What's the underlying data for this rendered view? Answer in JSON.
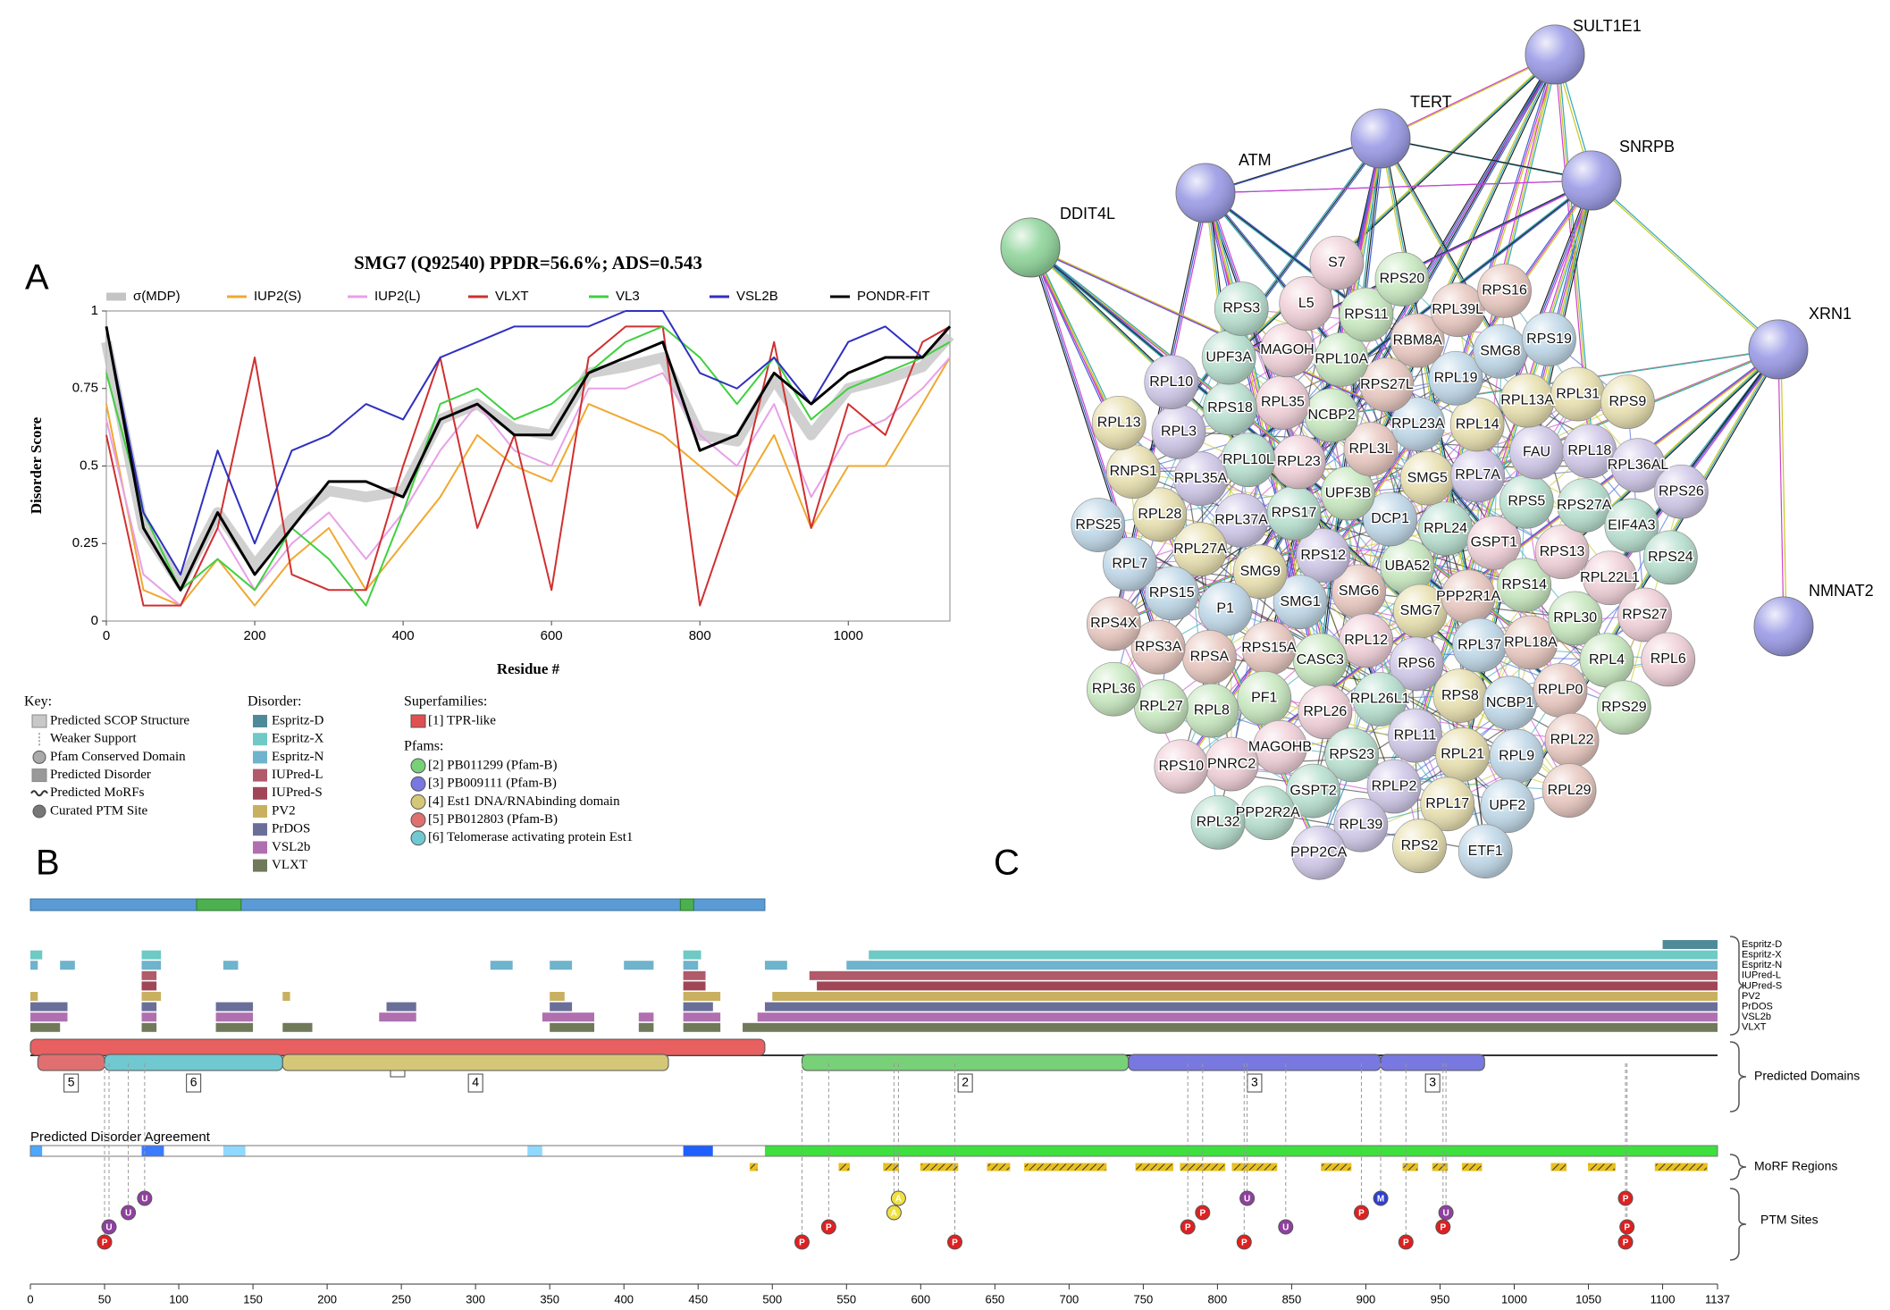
{
  "chart_data": [
    {
      "type": "line",
      "panel": "A",
      "title": "SMG7 (Q92540) PPDR=56.6%; ADS=0.543",
      "x_label": "Residue #",
      "y_label": "Disorder Score",
      "x": [
        0,
        50,
        100,
        150,
        200,
        250,
        300,
        350,
        400,
        450,
        500,
        550,
        600,
        650,
        700,
        750,
        800,
        850,
        900,
        950,
        1000,
        1050,
        1100,
        1137
      ],
      "series": [
        {
          "name": "σ(MDP)",
          "color": "#c4c4c4",
          "values": [
            0.9,
            0.3,
            0.12,
            0.35,
            0.18,
            0.33,
            0.42,
            0.4,
            0.42,
            0.65,
            0.7,
            0.62,
            0.6,
            0.8,
            0.82,
            0.85,
            0.6,
            0.58,
            0.78,
            0.6,
            0.75,
            0.78,
            0.82,
            0.92
          ]
        },
        {
          "name": "IUP2(S)",
          "color": "#f0a830",
          "values": [
            0.7,
            0.1,
            0.05,
            0.2,
            0.05,
            0.2,
            0.3,
            0.1,
            0.25,
            0.4,
            0.6,
            0.5,
            0.45,
            0.7,
            0.65,
            0.6,
            0.5,
            0.4,
            0.6,
            0.3,
            0.5,
            0.5,
            0.7,
            0.85
          ]
        },
        {
          "name": "IUP2(L)",
          "color": "#e8a0e8",
          "values": [
            0.65,
            0.15,
            0.05,
            0.3,
            0.1,
            0.25,
            0.35,
            0.2,
            0.35,
            0.55,
            0.7,
            0.55,
            0.5,
            0.75,
            0.75,
            0.8,
            0.6,
            0.5,
            0.7,
            0.4,
            0.6,
            0.65,
            0.75,
            0.85
          ]
        },
        {
          "name": "VLXT",
          "color": "#d03030",
          "values": [
            0.6,
            0.05,
            0.05,
            0.3,
            0.85,
            0.15,
            0.1,
            0.1,
            0.5,
            0.85,
            0.3,
            0.6,
            0.1,
            0.85,
            0.95,
            0.95,
            0.05,
            0.4,
            0.9,
            0.3,
            0.7,
            0.6,
            0.9,
            0.95
          ]
        },
        {
          "name": "VL3",
          "color": "#40d040",
          "values": [
            0.8,
            0.35,
            0.1,
            0.2,
            0.1,
            0.3,
            0.2,
            0.05,
            0.35,
            0.7,
            0.75,
            0.65,
            0.7,
            0.8,
            0.9,
            0.95,
            0.85,
            0.7,
            0.85,
            0.65,
            0.75,
            0.8,
            0.85,
            0.9
          ]
        },
        {
          "name": "VSL2B",
          "color": "#3030c0",
          "values": [
            0.95,
            0.35,
            0.15,
            0.55,
            0.25,
            0.55,
            0.6,
            0.7,
            0.65,
            0.85,
            0.9,
            0.95,
            0.95,
            0.95,
            1,
            1,
            0.8,
            0.75,
            0.85,
            0.7,
            0.9,
            0.95,
            0.85,
            0.95
          ]
        },
        {
          "name": "PONDR-FIT",
          "color": "#000000",
          "values": [
            0.95,
            0.3,
            0.1,
            0.35,
            0.15,
            0.3,
            0.45,
            0.45,
            0.4,
            0.65,
            0.7,
            0.6,
            0.6,
            0.8,
            0.85,
            0.9,
            0.55,
            0.6,
            0.8,
            0.7,
            0.8,
            0.85,
            0.85,
            0.95
          ]
        }
      ],
      "xlim": [
        0,
        1137
      ],
      "ylim": [
        0,
        1
      ],
      "xticks": [
        0,
        200,
        400,
        600,
        800,
        1000
      ],
      "yticks": [
        0,
        0.25,
        0.5,
        0.75,
        1
      ],
      "reference_line": 0.5
    },
    {
      "type": "track",
      "panel": "B",
      "xlim": [
        0,
        1137
      ],
      "xticks": [
        0,
        50,
        100,
        150,
        200,
        250,
        300,
        350,
        400,
        450,
        500,
        550,
        600,
        650,
        700,
        750,
        800,
        850,
        900,
        950,
        1000,
        1050,
        1100,
        1137
      ],
      "structure": {
        "color": "#5b9bd5",
        "range": [
          0,
          495
        ],
        "support_color": "#4caf50",
        "support": [
          [
            112,
            142
          ],
          [
            438,
            447
          ]
        ]
      },
      "disorder": {
        "title": "Disorder:",
        "tracks": [
          {
            "name": "Espritz-D",
            "color": "#4f8a98",
            "segments": [
              [
                1100,
                1137
              ]
            ]
          },
          {
            "name": "Espritz-X",
            "color": "#6fc9c4",
            "segments": [
              [
                0,
                8
              ],
              [
                75,
                88
              ],
              [
                440,
                452
              ],
              [
                565,
                1137
              ]
            ]
          },
          {
            "name": "Espritz-N",
            "color": "#6fb3cc",
            "segments": [
              [
                0,
                5
              ],
              [
                20,
                30
              ],
              [
                75,
                88
              ],
              [
                130,
                140
              ],
              [
                310,
                325
              ],
              [
                350,
                365
              ],
              [
                400,
                420
              ],
              [
                440,
                450
              ],
              [
                495,
                510
              ],
              [
                550,
                1137
              ]
            ]
          },
          {
            "name": "IUPred-L",
            "color": "#b05a6a",
            "segments": [
              [
                75,
                85
              ],
              [
                440,
                455
              ],
              [
                525,
                1137
              ]
            ]
          },
          {
            "name": "IUPred-S",
            "color": "#a04656",
            "segments": [
              [
                75,
                85
              ],
              [
                440,
                455
              ],
              [
                530,
                1137
              ]
            ]
          },
          {
            "name": "PV2",
            "color": "#c9b060",
            "segments": [
              [
                0,
                5
              ],
              [
                75,
                88
              ],
              [
                170,
                175
              ],
              [
                350,
                360
              ],
              [
                440,
                465
              ],
              [
                500,
                1137
              ]
            ]
          },
          {
            "name": "PrDOS",
            "color": "#6a6f9a",
            "segments": [
              [
                0,
                25
              ],
              [
                75,
                85
              ],
              [
                125,
                150
              ],
              [
                240,
                260
              ],
              [
                350,
                365
              ],
              [
                440,
                460
              ],
              [
                495,
                1137
              ]
            ]
          },
          {
            "name": "VSL2b",
            "color": "#b070b0",
            "segments": [
              [
                0,
                25
              ],
              [
                75,
                85
              ],
              [
                125,
                150
              ],
              [
                235,
                260
              ],
              [
                345,
                380
              ],
              [
                410,
                420
              ],
              [
                440,
                465
              ],
              [
                490,
                1137
              ]
            ]
          },
          {
            "name": "VLXT",
            "color": "#707a5a",
            "segments": [
              [
                0,
                20
              ],
              [
                75,
                85
              ],
              [
                125,
                150
              ],
              [
                170,
                190
              ],
              [
                350,
                380
              ],
              [
                410,
                420
              ],
              [
                440,
                465
              ],
              [
                480,
                1137
              ]
            ]
          }
        ]
      },
      "domains_label": "Predicted Domains",
      "domains": [
        {
          "label": "1",
          "start": 0,
          "end": 495,
          "color": "#e86060",
          "row": 0
        },
        {
          "label": "5",
          "start": 5,
          "end": 50,
          "color": "#e07070",
          "row": 1
        },
        {
          "label": "6",
          "start": 50,
          "end": 170,
          "color": "#70c8d0",
          "row": 1
        },
        {
          "label": "4",
          "start": 170,
          "end": 430,
          "color": "#d4c878",
          "row": 1
        },
        {
          "label": "2",
          "start": 520,
          "end": 740,
          "color": "#78d078",
          "row": 1
        },
        {
          "label": "3",
          "start": 740,
          "end": 910,
          "color": "#7878e0",
          "row": 1
        },
        {
          "label": "3",
          "start": 910,
          "end": 980,
          "color": "#7878e0",
          "row": 1
        }
      ],
      "agreement": {
        "label": "Predicted Disorder Agreement",
        "segments": [
          {
            "start": 0,
            "end": 8,
            "color": "#4da6ff"
          },
          {
            "start": 8,
            "end": 75,
            "color": "#ffffff"
          },
          {
            "start": 75,
            "end": 90,
            "color": "#3a7bff"
          },
          {
            "start": 90,
            "end": 130,
            "color": "#ffffff"
          },
          {
            "start": 130,
            "end": 145,
            "color": "#8fd8ff"
          },
          {
            "start": 145,
            "end": 335,
            "color": "#ffffff"
          },
          {
            "start": 335,
            "end": 345,
            "color": "#8fd8ff"
          },
          {
            "start": 345,
            "end": 440,
            "color": "#ffffff"
          },
          {
            "start": 440,
            "end": 460,
            "color": "#1f5fff"
          },
          {
            "start": 460,
            "end": 495,
            "color": "#ffffff"
          },
          {
            "start": 495,
            "end": 1137,
            "color": "#3de03d"
          }
        ]
      },
      "morfs": {
        "label": "MoRF Regions",
        "color": "#e8c020",
        "ranges": [
          [
            485,
            490
          ],
          [
            545,
            552
          ],
          [
            575,
            585
          ],
          [
            600,
            625
          ],
          [
            645,
            660
          ],
          [
            670,
            725
          ],
          [
            745,
            770
          ],
          [
            775,
            805
          ],
          [
            810,
            840
          ],
          [
            870,
            890
          ],
          [
            925,
            935
          ],
          [
            945,
            955
          ],
          [
            965,
            978
          ],
          [
            1025,
            1035
          ],
          [
            1050,
            1068
          ],
          [
            1095,
            1130
          ]
        ]
      },
      "ptm": {
        "label": "PTM Sites",
        "colors": {
          "P": "#e02020",
          "U": "#9040a0",
          "M": "#3040d0",
          "A": "#f0e040"
        },
        "sites": [
          {
            "letter": "P",
            "residue": 50,
            "level": 0
          },
          {
            "letter": "U",
            "residue": 53,
            "level": 1
          },
          {
            "letter": "U",
            "residue": 66,
            "level": 2
          },
          {
            "letter": "U",
            "residue": 77,
            "level": 3
          },
          {
            "letter": "P",
            "residue": 520,
            "level": 0
          },
          {
            "letter": "P",
            "residue": 538,
            "level": 1
          },
          {
            "letter": "A",
            "residue": 582,
            "level": 2
          },
          {
            "letter": "A",
            "residue": 585,
            "level": 3
          },
          {
            "letter": "P",
            "residue": 623,
            "level": 0
          },
          {
            "letter": "P",
            "residue": 780,
            "level": 1
          },
          {
            "letter": "P",
            "residue": 790,
            "level": 2
          },
          {
            "letter": "P",
            "residue": 818,
            "level": 0
          },
          {
            "letter": "U",
            "residue": 820,
            "level": 3
          },
          {
            "letter": "U",
            "residue": 846,
            "level": 1
          },
          {
            "letter": "P",
            "residue": 897,
            "level": 2
          },
          {
            "letter": "M",
            "residue": 910,
            "level": 3
          },
          {
            "letter": "P",
            "residue": 927,
            "level": 0
          },
          {
            "letter": "P",
            "residue": 952,
            "level": 1
          },
          {
            "letter": "U",
            "residue": 954,
            "level": 2
          },
          {
            "letter": "P",
            "residue": 1075,
            "level": 0
          },
          {
            "letter": "P",
            "residue": 1076,
            "level": 1
          },
          {
            "letter": "P",
            "residue": 1075,
            "level": 3
          }
        ]
      }
    }
  ],
  "key": {
    "title": "Key:",
    "items": [
      "Predicted SCOP Structure",
      "Weaker Support",
      "Pfam Conserved Domain",
      "Predicted Disorder",
      "Predicted MoRFs",
      "Curated PTM Site"
    ]
  },
  "families": {
    "superfamilies_title": "Superfamilies:",
    "superfamilies": [
      {
        "label": "[1] TPR-like",
        "color": "#e05050"
      }
    ],
    "pfams_title": "Pfams:",
    "pfams": [
      {
        "label": "[2] PB011299 (Pfam-B)",
        "color": "#78d078"
      },
      {
        "label": "[3] PB009111 (Pfam-B)",
        "color": "#7878e0"
      },
      {
        "label": "[4] Est1 DNA/RNAbinding domain",
        "color": "#d4c878"
      },
      {
        "label": "[5] PB012803 (Pfam-B)",
        "color": "#e07070"
      },
      {
        "label": "[6] Telomerase activating protein Est1",
        "color": "#70c8d0"
      }
    ]
  },
  "network": {
    "panel": "C",
    "hubs": [
      {
        "name": "SULT1E1",
        "color": "#9a9ae6"
      },
      {
        "name": "TERT",
        "color": "#9a9ae6"
      },
      {
        "name": "ATM",
        "color": "#9a9ae6"
      },
      {
        "name": "SNRPB",
        "color": "#9a9ae6"
      },
      {
        "name": "DDIT4L",
        "color": "#8fd49a"
      },
      {
        "name": "XRN1",
        "color": "#9a9ae6"
      },
      {
        "name": "NMNAT2",
        "color": "#9a9ae6"
      }
    ],
    "cluster": [
      "UBA52",
      "SMG6",
      "DCP1",
      "SMG7",
      "RPS12",
      "RPL24",
      "RPL12",
      "UPF3B",
      "PPP2R1A",
      "SMG1",
      "SMG5",
      "RPS6",
      "RPS17",
      "GSPT1",
      "CASC3",
      "RPL3L",
      "RPL37",
      "SMG9",
      "RPL7A",
      "RPL26L1",
      "RPL23",
      "RPS14",
      "RPS15A",
      "RPL23A",
      "RPS8",
      "RPL37A",
      "RPS5",
      "RPL26",
      "NCBP2",
      "RPL18A",
      "P1",
      "RPL14",
      "RPL11",
      "RPL10L",
      "RPS13",
      "PF1",
      "RPS27L",
      "NCBP1",
      "RPL27A",
      "FAU",
      "RPS23",
      "RPL35",
      "RPL30",
      "RPSA",
      "RPL19",
      "RPL21",
      "RPL35A",
      "RPS27A",
      "MAGOHB",
      "RPL10A",
      "RPLP0",
      "RPS15",
      "RPL13A",
      "RPLP2",
      "RPS18",
      "RPL22L1",
      "RPL8",
      "RBM8A",
      "RPL9",
      "RPL28",
      "RPL18",
      "GSPT2",
      "MAGOH",
      "RPL4",
      "RPS3A",
      "SMG8",
      "RPL17",
      "RPL3",
      "EIF4A3",
      "PNRC2",
      "RPS11",
      "RPL22",
      "RPL7",
      "RPL31",
      "RPL39",
      "UPF3A",
      "RPS27",
      "RPL27",
      "RPL39L",
      "UPF2",
      "RNPS1",
      "RPL36AL",
      "PPP2R2A",
      "L5",
      "RPS29",
      "RPS4X",
      "RPS19",
      "RPS2",
      "RPL10",
      "RPS24",
      "RPS10",
      "RPS20",
      "RPL29",
      "RPS25",
      "RPS9",
      "PPP2CA",
      "RPS3",
      "RPL6",
      "RPL36",
      "RPS16",
      "ETF1",
      "RPL13",
      "RPS26",
      "RPL32",
      "S7"
    ]
  }
}
